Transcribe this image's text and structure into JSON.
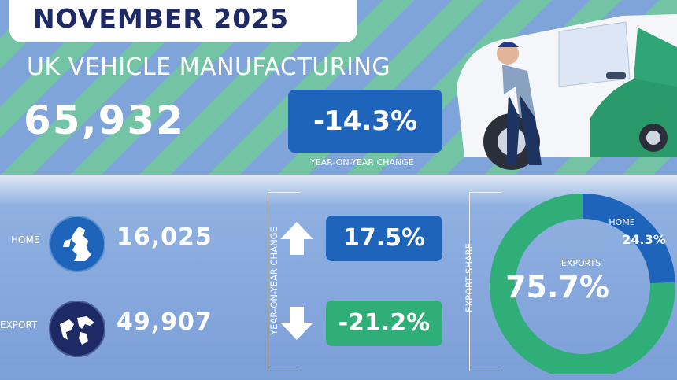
{
  "header": {
    "month": "NOVEMBER 2025",
    "title": "UK VEHICLE MANUFACTURING",
    "total": "65,932",
    "yoy_change": "-14.3%",
    "yoy_label": "YEAR-ON-YEAR CHANGE"
  },
  "rows": {
    "home": {
      "label": "HOME",
      "value": "16,025",
      "change": "17.5%",
      "direction": "up"
    },
    "export": {
      "label": "EXPORT",
      "value": "49,907",
      "change": "-21.2%",
      "direction": "down"
    }
  },
  "side_labels": {
    "yoy": "YEAR-ON-YEAR CHANGE",
    "share": "EXPORT SHARE"
  },
  "colors": {
    "navy": "#1d2a66",
    "blue": "#1e64ba",
    "green": "#2fae78",
    "bg_blue": "#7ea4da",
    "bg_green": "#73c4a4"
  },
  "icons": {
    "home": "uk-map-icon",
    "export": "globe-icon",
    "up": "arrow-up-icon",
    "down": "arrow-down-icon"
  },
  "chart_data": {
    "type": "pie",
    "categories": [
      "EXPORTS",
      "HOME"
    ],
    "values": [
      75.7,
      24.3
    ],
    "labels": [
      "75.7%",
      "24.3%"
    ],
    "title": ""
  }
}
